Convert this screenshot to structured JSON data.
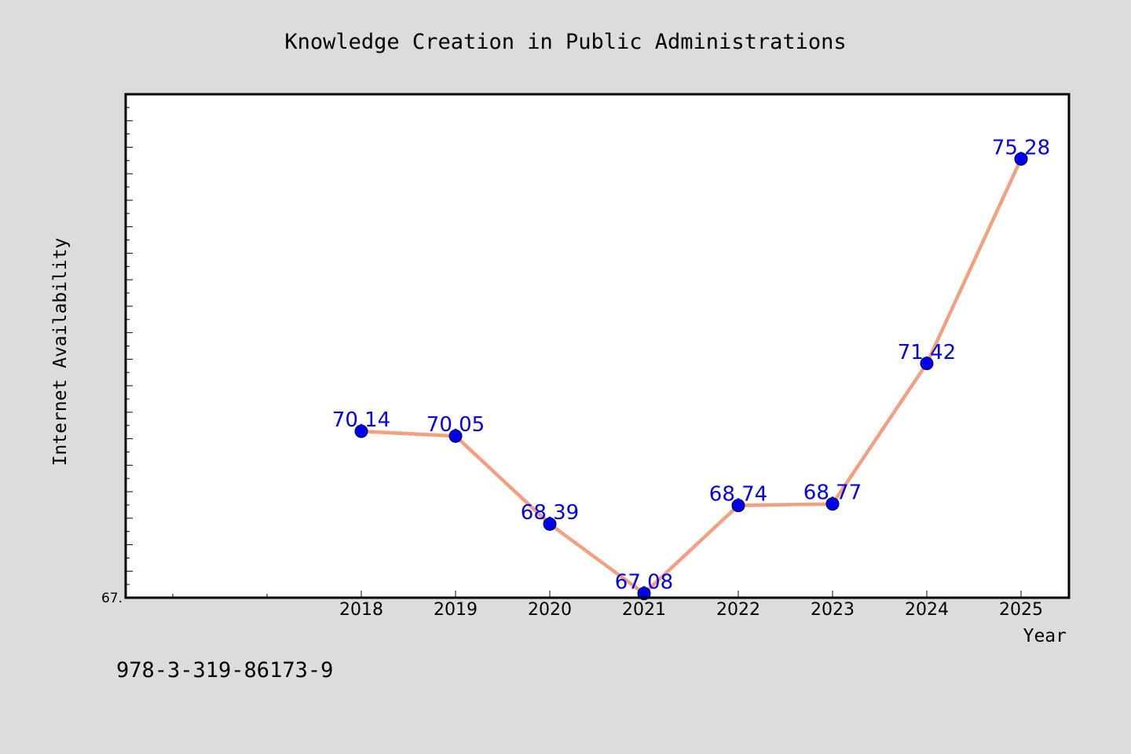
{
  "chart_data": {
    "type": "line",
    "title": "Knowledge Creation in Public Administrations",
    "xlabel": "Year",
    "ylabel": "Internet Availability",
    "x": [
      "2018",
      "2019",
      "2020",
      "2021",
      "2022",
      "2023",
      "2024",
      "2025"
    ],
    "series": [
      {
        "values": [
          70.14,
          70.05,
          68.39,
          67.08,
          68.74,
          68.77,
          71.42,
          75.28
        ]
      }
    ],
    "data_labels": [
      "70.14",
      "70.05",
      "68.39",
      "67.08",
      "68.74",
      "68.77",
      "71.42",
      "75.28"
    ],
    "x_extra_minor_ticks": 2,
    "ylim": [
      67.0,
      76.5
    ],
    "y_tick_labels": [
      "67."
    ],
    "grid": false,
    "legend": "none",
    "colors": {
      "background": "#dcdcdc",
      "plot_area": "#ffffff",
      "line": "#f4a07f",
      "marker": "#0000ee",
      "data_label": "#0000ee",
      "axis": "#000000"
    }
  },
  "footnote": "978-3-319-86173-9"
}
